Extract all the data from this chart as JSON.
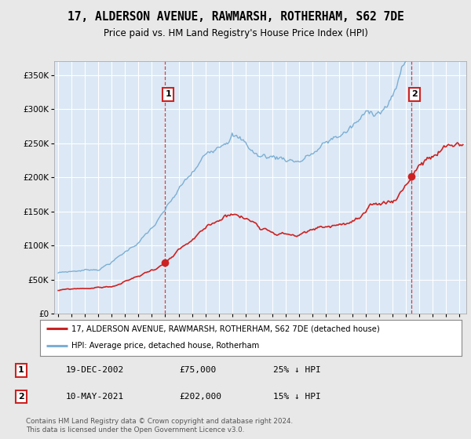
{
  "title": "17, ALDERSON AVENUE, RAWMARSH, ROTHERHAM, S62 7DE",
  "subtitle": "Price paid vs. HM Land Registry's House Price Index (HPI)",
  "ytick_values": [
    0,
    50000,
    100000,
    150000,
    200000,
    250000,
    300000,
    350000
  ],
  "ylim": [
    0,
    370000
  ],
  "xlim_start": 1994.7,
  "xlim_end": 2025.5,
  "hpi_color": "#7bafd4",
  "property_color": "#cc2222",
  "sale1_x": 2002.97,
  "sale1_y": 75000,
  "sale1_label": "1",
  "sale2_x": 2021.37,
  "sale2_y": 202000,
  "sale2_label": "2",
  "legend_property": "17, ALDERSON AVENUE, RAWMARSH, ROTHERHAM, S62 7DE (detached house)",
  "legend_hpi": "HPI: Average price, detached house, Rotherham",
  "sale1_date": "19-DEC-2002",
  "sale1_price": "£75,000",
  "sale1_hpi_text": "25% ↓ HPI",
  "sale2_date": "10-MAY-2021",
  "sale2_price": "£202,000",
  "sale2_hpi_text": "15% ↓ HPI",
  "footer": "Contains HM Land Registry data © Crown copyright and database right 2024.\nThis data is licensed under the Open Government Licence v3.0.",
  "background_color": "#e8e8e8",
  "plot_bg_color": "#dce8f5",
  "grid_color": "#ffffff",
  "legend_bg": "#ffffff",
  "xtick_years": [
    1995,
    1996,
    1997,
    1998,
    1999,
    2000,
    2001,
    2002,
    2003,
    2004,
    2005,
    2006,
    2007,
    2008,
    2009,
    2010,
    2011,
    2012,
    2013,
    2014,
    2015,
    2016,
    2017,
    2018,
    2019,
    2020,
    2021,
    2022,
    2023,
    2024,
    2025
  ]
}
